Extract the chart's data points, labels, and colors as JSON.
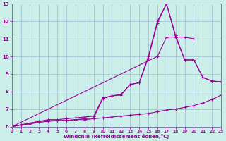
{
  "xlabel": "Windchill (Refroidissement éolien,°C)",
  "bg_color": "#cceee8",
  "grid_color": "#99bbcc",
  "line_color": "#990099",
  "xlim": [
    0,
    23
  ],
  "ylim": [
    6,
    13
  ],
  "xticks": [
    0,
    1,
    2,
    3,
    4,
    5,
    6,
    7,
    8,
    9,
    10,
    11,
    12,
    13,
    14,
    15,
    16,
    17,
    18,
    19,
    20,
    21,
    22,
    23
  ],
  "yticks": [
    6,
    7,
    8,
    9,
    10,
    11,
    12,
    13
  ],
  "line1_x": [
    0,
    1,
    2,
    3,
    4,
    5,
    6,
    7,
    8,
    9,
    10,
    11,
    12,
    13,
    14,
    15,
    16,
    17,
    18,
    19,
    20,
    21,
    22,
    23
  ],
  "line1_y": [
    6.0,
    6.1,
    6.2,
    6.3,
    6.35,
    6.35,
    6.35,
    6.4,
    6.4,
    6.45,
    6.5,
    6.55,
    6.6,
    6.65,
    6.7,
    6.75,
    6.85,
    6.95,
    7.0,
    7.1,
    7.2,
    7.35,
    7.55,
    7.8
  ],
  "line2_x": [
    0,
    1,
    2,
    3,
    4,
    5,
    6,
    7,
    8,
    9,
    10,
    11,
    12,
    13,
    14,
    15,
    16,
    17,
    18,
    19,
    20,
    21,
    22,
    23
  ],
  "line2_y": [
    6.0,
    6.1,
    6.2,
    6.3,
    6.4,
    6.4,
    6.45,
    6.5,
    6.55,
    6.6,
    7.65,
    7.75,
    7.85,
    8.4,
    8.5,
    10.0,
    12.0,
    13.0,
    11.2,
    9.8,
    9.8,
    8.8,
    8.6,
    8.55
  ],
  "line3_x": [
    0,
    1,
    2,
    3,
    4,
    5,
    6,
    7,
    8,
    9,
    10,
    11,
    12,
    13,
    14,
    15,
    16,
    17,
    18,
    19,
    20,
    21,
    22,
    23
  ],
  "line3_y": [
    6.0,
    6.1,
    6.15,
    6.25,
    6.3,
    6.35,
    6.35,
    6.4,
    6.45,
    6.5,
    7.6,
    7.75,
    7.8,
    8.4,
    8.5,
    9.9,
    11.9,
    13.0,
    11.1,
    11.1,
    11.0,
    null,
    null,
    null
  ],
  "line4_x": [
    0,
    16,
    17,
    18,
    19,
    20,
    21,
    22,
    23
  ],
  "line4_y": [
    6.0,
    10.0,
    11.1,
    11.1,
    9.8,
    9.8,
    8.8,
    8.6,
    8.55
  ]
}
